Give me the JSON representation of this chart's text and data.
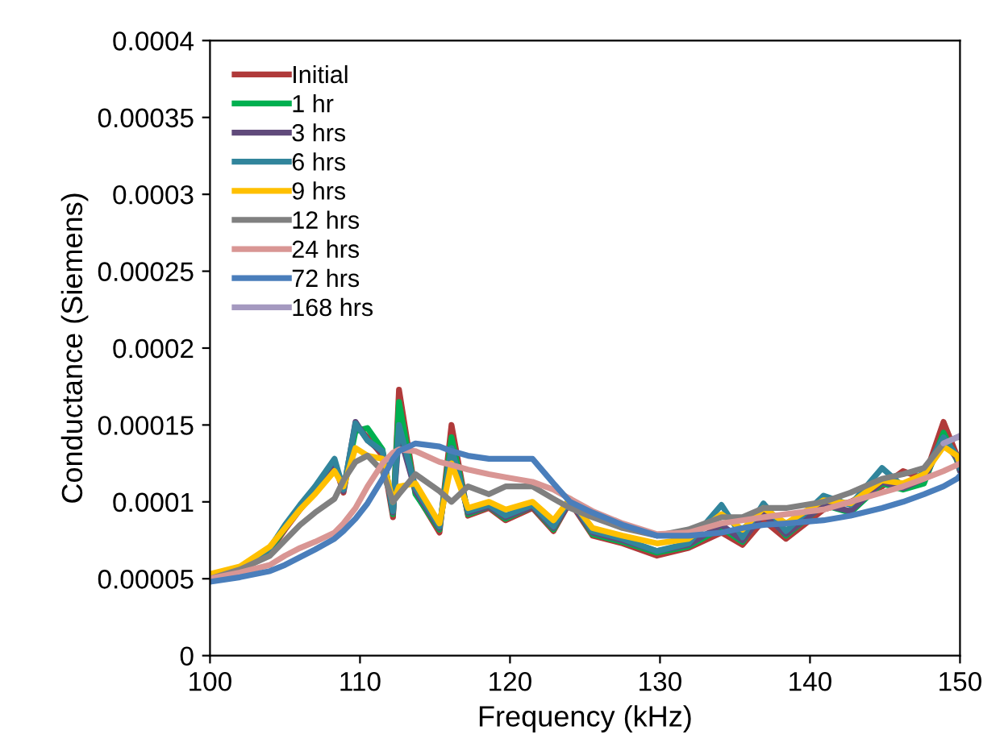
{
  "chart_data": {
    "type": "line",
    "xlabel": "Frequency (kHz)",
    "ylabel": "Conductance (Siemens)",
    "xlim": [
      100,
      150
    ],
    "xticks": [
      100,
      110,
      120,
      130,
      140,
      150
    ],
    "ylim": [
      0,
      0.0004
    ],
    "yticks": [
      {
        "value": 0,
        "label": "0"
      },
      {
        "value": 5e-05,
        "label": "0.00005"
      },
      {
        "value": 0.0001,
        "label": "0.0001"
      },
      {
        "value": 0.00015,
        "label": "0.00015"
      },
      {
        "value": 0.0002,
        "label": "0.0002"
      },
      {
        "value": 0.00025,
        "label": "0.00025"
      },
      {
        "value": 0.0003,
        "label": "0.0003"
      },
      {
        "value": 0.00035,
        "label": "0.00035"
      },
      {
        "value": 0.0004,
        "label": "0.0004"
      }
    ],
    "x": [
      100,
      102,
      104,
      105,
      106,
      107,
      108.3,
      108.9,
      109.7,
      110.5,
      111.5,
      112.2,
      112.6,
      113.7,
      115.3,
      116.1,
      117.2,
      118.6,
      119.7,
      121.5,
      122.9,
      124,
      125.5,
      127.5,
      129.8,
      131.9,
      134.1,
      135.5,
      136.9,
      138.4,
      140.9,
      142.7,
      144.8,
      146.2,
      147.6,
      148.9,
      149.8,
      150
    ],
    "legend": "top left",
    "grid": false,
    "marker": "none",
    "line_style": "solid",
    "series": [
      {
        "name": "Initial",
        "color": "#b03a3a",
        "values": [
          5.1e-05,
          5.6e-05,
          6.8e-05,
          8.2e-05,
          9.5e-05,
          0.000107,
          0.000125,
          0.000106,
          0.00015,
          0.000142,
          0.00013,
          9e-05,
          0.000173,
          0.000106,
          8e-05,
          0.00015,
          9.1e-05,
          9.6e-05,
          8.8e-05,
          9.6e-05,
          8.1e-05,
          0.0001,
          7.8e-05,
          7.3e-05,
          6.5e-05,
          7e-05,
          8e-05,
          7.2e-05,
          8.8e-05,
          7.6e-05,
          9.5e-05,
          0.0001,
          0.00011,
          0.00012,
          0.000115,
          0.000152,
          0.00013,
          0.000122
        ]
      },
      {
        "name": "1 hr",
        "color": "#00b050",
        "values": [
          5.2e-05,
          5.6e-05,
          6.9e-05,
          8.3e-05,
          9.6e-05,
          0.000108,
          0.000126,
          0.000108,
          0.000146,
          0.000148,
          0.000134,
          9.2e-05,
          0.000165,
          0.000105,
          8.2e-05,
          0.000142,
          9.2e-05,
          9.7e-05,
          8.9e-05,
          9.7e-05,
          8.2e-05,
          0.000101,
          7.9e-05,
          7.4e-05,
          6.7e-05,
          7.1e-05,
          8.3e-05,
          7.4e-05,
          9.5e-05,
          7.8e-05,
          9.8e-05,
          9.3e-05,
          0.000112,
          0.000108,
          0.000112,
          0.000145,
          0.000127,
          0.00012
        ]
      },
      {
        "name": "3 hrs",
        "color": "#604a7b",
        "values": [
          5.2e-05,
          5.7e-05,
          7e-05,
          8.4e-05,
          9.7e-05,
          0.000109,
          0.000126,
          0.000107,
          0.000152,
          0.00014,
          0.000132,
          9.3e-05,
          0.000145,
          0.000107,
          8.3e-05,
          0.000135,
          9.3e-05,
          9.7e-05,
          9e-05,
          9.7e-05,
          8.3e-05,
          0.0001,
          8e-05,
          7.5e-05,
          6.8e-05,
          7.2e-05,
          8.5e-05,
          7.5e-05,
          9.2e-05,
          7.9e-05,
          9.8e-05,
          9.4e-05,
          0.000113,
          0.000109,
          0.000115,
          0.00014,
          0.000128,
          0.00012
        ]
      },
      {
        "name": "6 hrs",
        "color": "#31859c",
        "values": [
          5.2e-05,
          5.7e-05,
          7e-05,
          8.5e-05,
          9.8e-05,
          0.00011,
          0.000128,
          0.000108,
          0.000151,
          0.00014,
          0.000133,
          9.4e-05,
          0.00015,
          0.000109,
          8.4e-05,
          0.000135,
          9.4e-05,
          9.8e-05,
          9.1e-05,
          9.8e-05,
          8.4e-05,
          0.000102,
          8.1e-05,
          7.6e-05,
          6.8e-05,
          7.3e-05,
          9.8e-05,
          7.7e-05,
          9.9e-05,
          8.1e-05,
          0.000104,
          9.8e-05,
          0.000122,
          0.00011,
          0.000119,
          0.000142,
          0.00013,
          0.000122
        ]
      },
      {
        "name": "9 hrs",
        "color": "#ffc000",
        "values": [
          5.3e-05,
          5.8e-05,
          7.1e-05,
          8.3e-05,
          9.5e-05,
          0.000105,
          0.00012,
          0.00011,
          0.000135,
          0.00013,
          0.000128,
          0.0001,
          0.00011,
          0.000112,
          8.6e-05,
          0.000125,
          9.6e-05,
          0.0001,
          9.5e-05,
          0.0001,
          8.8e-05,
          0.000102,
          8.3e-05,
          7.8e-05,
          7.3e-05,
          7.6e-05,
          9.2e-05,
          8.2e-05,
          9.6e-05,
          8.6e-05,
          0.000101,
          9.9e-05,
          0.000114,
          0.000112,
          0.000118,
          0.000136,
          0.00013,
          0.000125
        ]
      },
      {
        "name": "12 hrs",
        "color": "#808080",
        "values": [
          5e-05,
          5.6e-05,
          6.5e-05,
          7.5e-05,
          8.5e-05,
          9.3e-05,
          0.000102,
          0.000114,
          0.000126,
          0.00013,
          0.00012,
          0.0001,
          0.000105,
          0.000118,
          0.000107,
          0.0001,
          0.00011,
          0.000105,
          0.00011,
          0.00011,
          0.000102,
          9.6e-05,
          9e-05,
          8.3e-05,
          7.8e-05,
          8.2e-05,
          9e-05,
          9e-05,
          9.6e-05,
          9.6e-05,
          0.0001,
          0.000106,
          0.000115,
          0.000118,
          0.000122,
          0.000138,
          0.000142,
          0.000142
        ]
      },
      {
        "name": "24 hrs",
        "color": "#d99694",
        "values": [
          5e-05,
          5.4e-05,
          5.9e-05,
          6.5e-05,
          7e-05,
          7.4e-05,
          8e-05,
          8.6e-05,
          9.6e-05,
          0.00011,
          0.000125,
          0.000132,
          0.000134,
          0.000133,
          0.000126,
          0.000124,
          0.000121,
          0.000118,
          0.000116,
          0.000113,
          0.000108,
          0.000102,
          9.4e-05,
          8.6e-05,
          7.9e-05,
          8e-05,
          8.6e-05,
          8.8e-05,
          9e-05,
          9.2e-05,
          9.5e-05,
          0.0001,
          0.000106,
          0.00011,
          0.000115,
          0.00012,
          0.000124,
          0.000125
        ]
      },
      {
        "name": "72 hrs",
        "color": "#4a7ebb",
        "values": [
          4.8e-05,
          5.1e-05,
          5.5e-05,
          5.9e-05,
          6.4e-05,
          6.9e-05,
          7.6e-05,
          8.1e-05,
          8.9e-05,
          9.9e-05,
          0.000115,
          0.000128,
          0.000133,
          0.000138,
          0.000136,
          0.000133,
          0.00013,
          0.000128,
          0.000128,
          0.000128,
          0.000112,
          0.0001,
          9.3e-05,
          8.5e-05,
          7.8e-05,
          7.8e-05,
          8e-05,
          8.3e-05,
          8.5e-05,
          8.6e-05,
          8.8e-05,
          9.1e-05,
          9.6e-05,
          0.0001,
          0.000105,
          0.00011,
          0.000115,
          0.000117
        ]
      },
      {
        "name": "168 hrs",
        "color": "#a599c0",
        "values": [
          null,
          null,
          null,
          null,
          null,
          null,
          null,
          null,
          null,
          null,
          null,
          null,
          null,
          null,
          null,
          null,
          null,
          null,
          null,
          null,
          null,
          null,
          null,
          null,
          null,
          null,
          null,
          null,
          null,
          null,
          null,
          null,
          null,
          null,
          null,
          0.000138,
          0.000142,
          0.000143
        ]
      }
    ]
  }
}
